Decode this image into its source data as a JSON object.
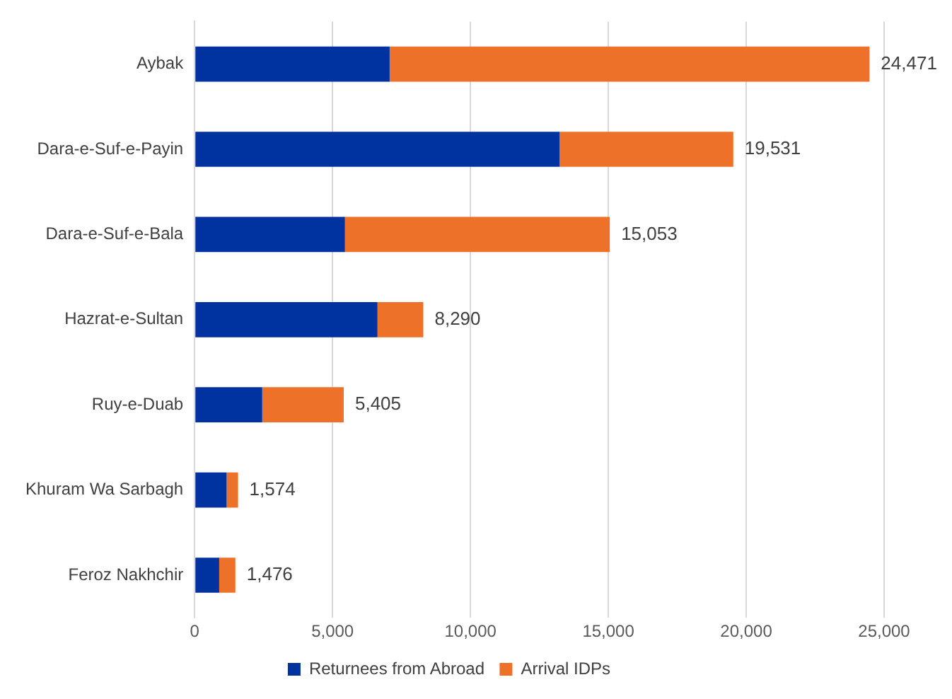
{
  "chart_data": {
    "type": "bar",
    "orientation": "horizontal",
    "stacked": true,
    "categories": [
      "Aybak",
      "Dara-e-Suf-e-Payin",
      "Dara-e-Suf-e-Bala",
      "Hazrat-e-Sultan",
      "Ruy-e-Duab",
      "Khuram Wa Sarbagh",
      "Feroz Nakhchir"
    ],
    "series": [
      {
        "name": "Returnees from Abroad",
        "color": "#0033a0",
        "values": [
          7070,
          13230,
          5450,
          6630,
          2450,
          1160,
          890
        ]
      },
      {
        "name": "Arrival IDPs",
        "color": "#ed7128",
        "values": [
          17401,
          6301,
          9603,
          1660,
          2955,
          414,
          586
        ]
      }
    ],
    "totals": [
      "24,471",
      "19,531",
      "15,053",
      "8,290",
      "5,405",
      "1,574",
      "1,476"
    ],
    "xlim": [
      0,
      25000
    ],
    "xticks": [
      {
        "value": 0,
        "label": "0"
      },
      {
        "value": 5000,
        "label": "5,000"
      },
      {
        "value": 10000,
        "label": "10,000"
      },
      {
        "value": 15000,
        "label": "15,000"
      },
      {
        "value": 20000,
        "label": "20,000"
      },
      {
        "value": 25000,
        "label": "25,000"
      }
    ],
    "grid": "x",
    "legend": "bottom"
  }
}
